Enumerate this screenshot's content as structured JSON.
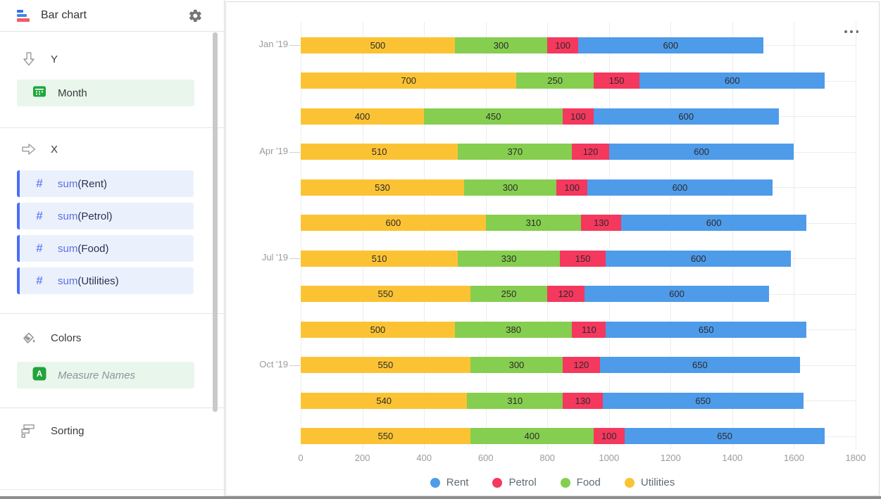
{
  "header": {
    "title": "Bar chart"
  },
  "sidebar": {
    "y_section": {
      "label": "Y",
      "field": {
        "label": "Month"
      }
    },
    "x_section": {
      "label": "X",
      "fields": [
        {
          "label": "sum(Rent)"
        },
        {
          "label": "sum(Petrol)"
        },
        {
          "label": "sum(Food)"
        },
        {
          "label": "sum(Utilities)"
        }
      ]
    },
    "colors_section": {
      "label": "Colors",
      "field": {
        "label": "Measure Names"
      }
    },
    "sorting_section": {
      "label": "Sorting"
    }
  },
  "chart_data": {
    "type": "bar",
    "orientation": "horizontal",
    "stacked": true,
    "grid": true,
    "value_labels": true,
    "categories": [
      "Jan '19",
      "",
      "",
      "Apr '19",
      "",
      "",
      "Jul '19",
      "",
      "",
      "Oct '19",
      "",
      ""
    ],
    "series": [
      {
        "name": "Utilities",
        "color": "#FBC334",
        "values": [
          500,
          700,
          400,
          510,
          530,
          600,
          510,
          550,
          500,
          550,
          540,
          550
        ]
      },
      {
        "name": "Food",
        "color": "#86CE4F",
        "values": [
          300,
          250,
          450,
          370,
          300,
          310,
          330,
          250,
          380,
          300,
          310,
          400
        ]
      },
      {
        "name": "Petrol",
        "color": "#F4385E",
        "values": [
          100,
          150,
          100,
          120,
          100,
          130,
          150,
          120,
          110,
          120,
          130,
          100
        ]
      },
      {
        "name": "Rent",
        "color": "#4E9BEA",
        "values": [
          600,
          600,
          600,
          600,
          600,
          600,
          600,
          600,
          650,
          650,
          650,
          650
        ]
      }
    ],
    "legend": [
      {
        "name": "Rent",
        "color": "#4E9BEA"
      },
      {
        "name": "Petrol",
        "color": "#F4385E"
      },
      {
        "name": "Food",
        "color": "#86CE4F"
      },
      {
        "name": "Utilities",
        "color": "#FBC334"
      }
    ],
    "xlim": [
      0,
      1800
    ],
    "x_ticks": [
      0,
      200,
      400,
      600,
      800,
      1000,
      1200,
      1400,
      1600,
      1800
    ],
    "legend_position": "bottom"
  }
}
